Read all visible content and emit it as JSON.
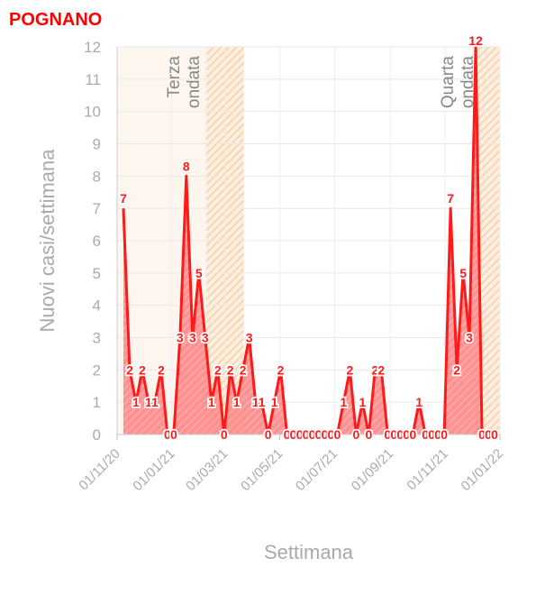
{
  "chart_data": {
    "type": "area",
    "title": "POGNANO",
    "xlabel": "Settimana",
    "ylabel": "Nuovi casi/settimana",
    "ylim": [
      0,
      12
    ],
    "y_ticks": [
      0,
      1,
      2,
      3,
      4,
      5,
      6,
      7,
      8,
      9,
      10,
      11,
      12
    ],
    "x_range": [
      "2020-11-01",
      "2022-01-01"
    ],
    "x_ticks": [
      "01/11/20",
      "01/01/21",
      "01/03/21",
      "01/05/21",
      "01/07/21",
      "01/09/21",
      "01/11/21",
      "01/01/22"
    ],
    "x_tick_dates": [
      "2020-11-01",
      "2021-01-01",
      "2021-03-01",
      "2021-05-01",
      "2021-07-01",
      "2021-09-01",
      "2021-11-01",
      "2022-01-01"
    ],
    "grid": true,
    "line_color": "#ff1a1a",
    "fill_color": "#ff8080",
    "waves": [
      {
        "label": "Terza ondata",
        "shade_start": "2020-11-01",
        "hatch_start": "2021-02-08",
        "hatch_end": "2021-03-22"
      },
      {
        "label": "Quarta ondata",
        "shade_start": "2021-12-06",
        "hatch_start": "2021-12-06",
        "hatch_end": "2022-01-01"
      }
    ],
    "series": [
      {
        "dates": [
          "2020-11-08",
          "2020-11-15",
          "2020-11-22",
          "2020-11-29",
          "2020-12-06",
          "2020-12-13",
          "2020-12-20",
          "2020-12-27",
          "2021-01-03",
          "2021-01-10",
          "2021-01-17",
          "2021-01-24",
          "2021-01-31",
          "2021-02-07",
          "2021-02-14",
          "2021-02-21",
          "2021-02-28",
          "2021-03-07",
          "2021-03-14",
          "2021-03-21",
          "2021-03-28",
          "2021-04-04",
          "2021-04-11",
          "2021-04-18",
          "2021-04-25",
          "2021-05-02",
          "2021-05-09",
          "2021-05-16",
          "2021-05-23",
          "2021-05-30",
          "2021-06-06",
          "2021-06-13",
          "2021-06-20",
          "2021-06-27",
          "2021-07-04",
          "2021-07-11",
          "2021-07-18",
          "2021-07-25",
          "2021-08-01",
          "2021-08-08",
          "2021-08-15",
          "2021-08-22",
          "2021-08-29",
          "2021-09-05",
          "2021-09-12",
          "2021-09-19",
          "2021-09-26",
          "2021-10-03",
          "2021-10-10",
          "2021-10-17",
          "2021-10-24",
          "2021-10-31",
          "2021-11-07",
          "2021-11-14",
          "2021-11-21",
          "2021-11-28",
          "2021-12-05",
          "2021-12-12",
          "2021-12-19",
          "2021-12-26"
        ],
        "values": [
          7,
          2,
          1,
          2,
          1,
          1,
          2,
          0,
          0,
          3,
          8,
          3,
          5,
          3,
          1,
          2,
          0,
          2,
          1,
          2,
          3,
          1,
          1,
          0,
          1,
          2,
          0,
          0,
          0,
          0,
          0,
          0,
          0,
          0,
          0,
          1,
          2,
          0,
          1,
          0,
          2,
          2,
          0,
          0,
          0,
          0,
          0,
          1,
          0,
          0,
          0,
          0,
          7,
          2,
          5,
          3,
          12,
          0,
          0,
          0
        ]
      }
    ]
  }
}
